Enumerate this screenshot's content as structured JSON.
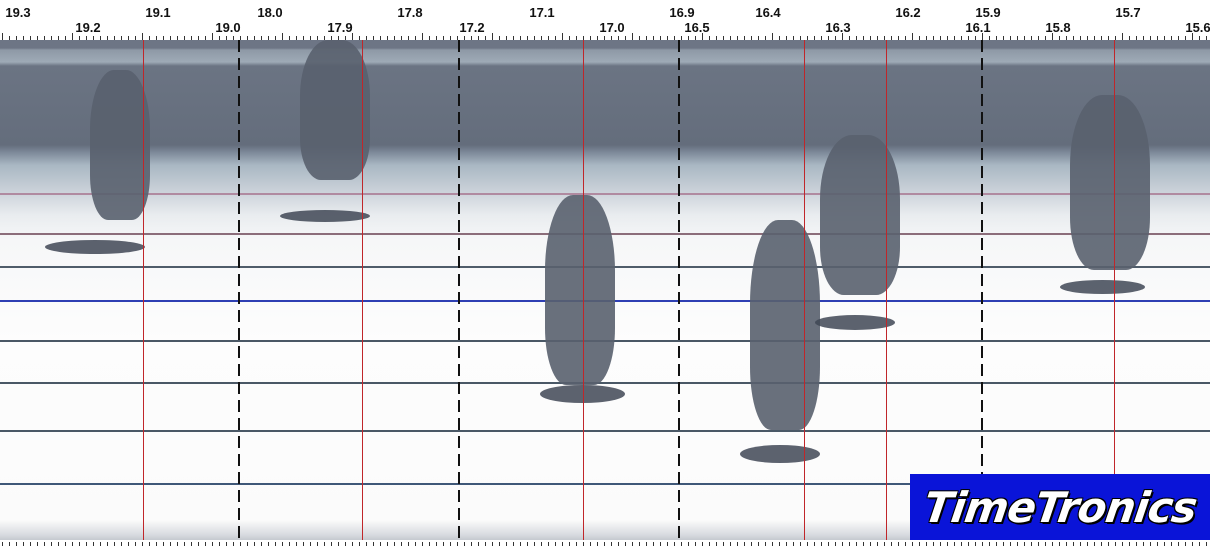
{
  "time_scale": {
    "upper_labels": [
      "19.3",
      "19.1",
      "18.0",
      "17.8",
      "17.1",
      "16.9",
      "16.4",
      "16.2",
      "15.9",
      "15.7"
    ],
    "lower_labels": [
      "19.2",
      "19.0",
      "17.9",
      "17.2",
      "17.0",
      "16.5",
      "16.3",
      "16.1",
      "15.8",
      "15.6"
    ]
  },
  "photo": {
    "finish_line_markers": 6,
    "segment_dividers": 4,
    "athletes": 6
  },
  "logo": {
    "text": "TimeTronics",
    "background": "#0a14d8"
  }
}
